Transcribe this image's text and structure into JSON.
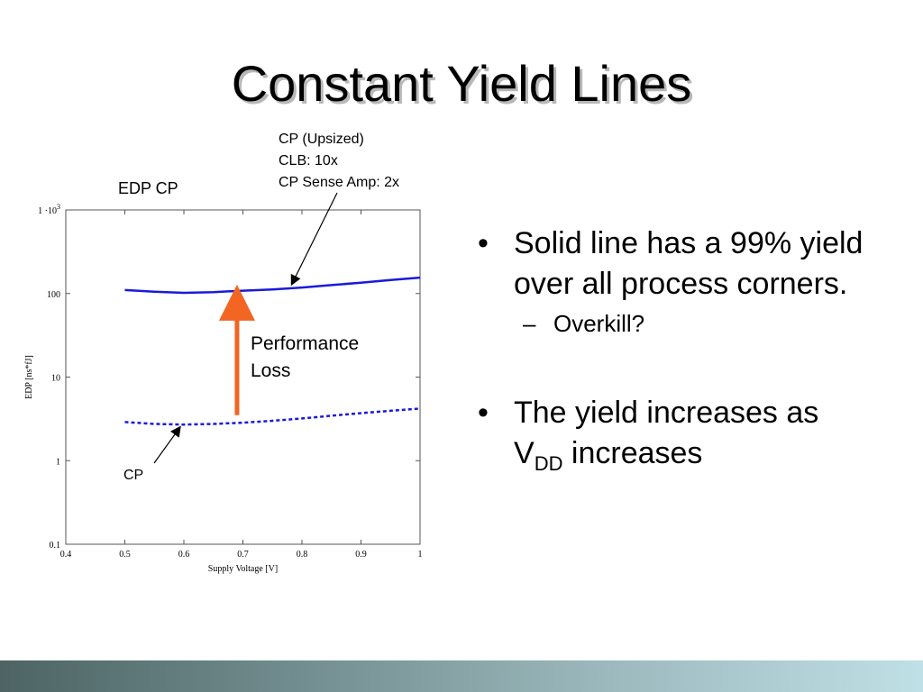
{
  "slide": {
    "title": "Constant Yield Lines",
    "figure_label": "EDP CP",
    "callout_upsized": [
      "CP (Upsized)",
      "CLB: 10x",
      "CP Sense Amp: 2x"
    ],
    "performance_label": [
      "Performance",
      "Loss"
    ],
    "cp_label": "CP",
    "bullets": [
      {
        "text": "Solid line has a 99% yield over all process corners.",
        "sub": "Overkill?"
      },
      {
        "prefix": "The yield increases as V",
        "subscript": "DD",
        "suffix": " increases"
      }
    ],
    "bullet_glyph": "•",
    "sub_glyph": "–"
  },
  "chart_data": {
    "type": "line",
    "xlabel": "Supply Voltage [V]",
    "ylabel": "EDP [ns*fJ]",
    "xlim": [
      0.4,
      1.0
    ],
    "ylim": [
      0.1,
      1000
    ],
    "yscale": "log",
    "x_ticks": [
      "0.4",
      "0.5",
      "0.6",
      "0.7",
      "0.8",
      "0.9",
      "1"
    ],
    "y_ticks": [
      {
        "value": 0.1,
        "label": "0.1"
      },
      {
        "value": 1,
        "label": "1"
      },
      {
        "value": 10,
        "label": "10"
      },
      {
        "value": 100,
        "label": "100"
      },
      {
        "value": 1000,
        "label": "1 ·10",
        "sup": "3"
      }
    ],
    "series": [
      {
        "name": "CP (Upsized)",
        "style": "solid",
        "color": "#1a1adc",
        "x": [
          0.5,
          0.55,
          0.6,
          0.65,
          0.7,
          0.75,
          0.8,
          0.85,
          0.9,
          0.95,
          1.0
        ],
        "y": [
          110,
          105,
          102,
          104,
          108,
          112,
          118,
          126,
          135,
          145,
          155
        ]
      },
      {
        "name": "CP",
        "style": "dashed",
        "color": "#1a1adc",
        "x": [
          0.5,
          0.55,
          0.6,
          0.65,
          0.7,
          0.75,
          0.8,
          0.85,
          0.9,
          0.95,
          1.0
        ],
        "y": [
          2.9,
          2.75,
          2.7,
          2.75,
          2.85,
          3.0,
          3.2,
          3.45,
          3.7,
          3.95,
          4.2
        ]
      }
    ],
    "performance_arrow": {
      "x": 0.69,
      "y_from": 3.5,
      "y_to": 110,
      "color": "#f26522"
    },
    "callout_pointer": {
      "x": 0.78,
      "y": 118
    },
    "cp_pointer": {
      "x": 0.59,
      "y": 2.75
    }
  }
}
